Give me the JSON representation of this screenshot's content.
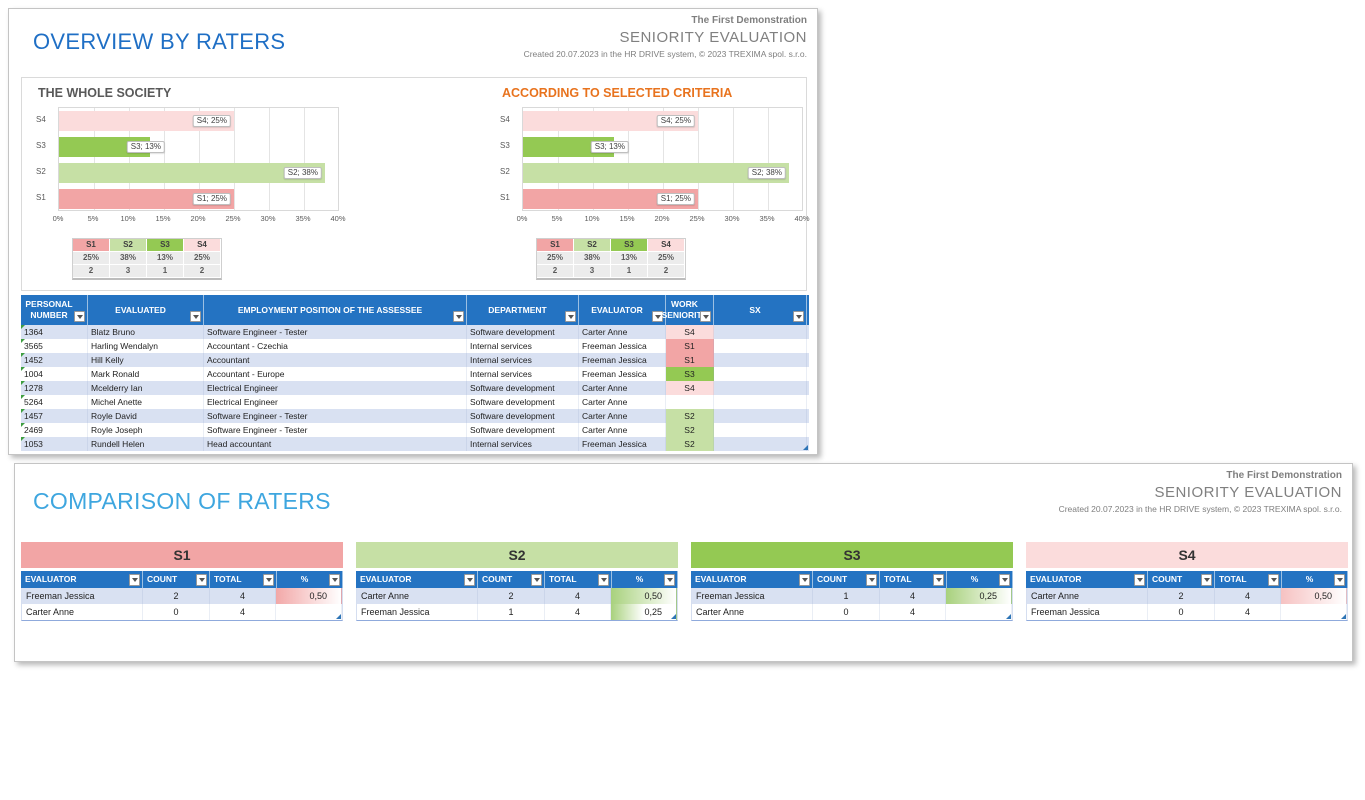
{
  "overview": {
    "title": "OVERVIEW BY RATERS",
    "brand": "The First Demonstration",
    "subtitle": "SENIORITY EVALUATION",
    "created": "Created 20.07.2023 in the HR DRIVE system, © 2023 TREXIMA spol. s.r.o."
  },
  "comparison": {
    "title": "COMPARISON OF RATERS",
    "brand": "The First Demonstration",
    "subtitle": "SENIORITY EVALUATION",
    "created": "Created 20.07.2023 in the HR DRIVE system, © 2023 TREXIMA spol. s.r.o."
  },
  "colors": {
    "s1": "#F2A5A5",
    "s2": "#C6E0A5",
    "s3": "#94C953",
    "s4": "#FBDCDC",
    "header_blue": "#2473C2",
    "overview_title_blue": "#1F6FC5",
    "comparison_title_blue": "#3EA6DF",
    "chart2_title_orange": "#E8731E",
    "chart1_title_gray": "#595959",
    "row_alt_blue": "#D9E1F2"
  },
  "chart_data": [
    {
      "type": "bar",
      "orientation": "horizontal",
      "title": "THE WHOLE SOCIETY",
      "title_color": "#595959",
      "categories": [
        "S4",
        "S3",
        "S2",
        "S1"
      ],
      "values": [
        25,
        13,
        38,
        25
      ],
      "labels": [
        "S4; 25%",
        "S3; 13%",
        "S2; 38%",
        "S1; 25%"
      ],
      "bar_colors": [
        "s4",
        "s3",
        "s2",
        "s1"
      ],
      "xlim": [
        0,
        40
      ],
      "xticks": [
        "0%",
        "5%",
        "10%",
        "15%",
        "20%",
        "25%",
        "30%",
        "35%",
        "40%"
      ],
      "grid": true,
      "legend": "none"
    },
    {
      "type": "bar",
      "orientation": "horizontal",
      "title": "ACCORDING TO SELECTED CRITERIA",
      "title_color": "#E8731E",
      "categories": [
        "S4",
        "S3",
        "S2",
        "S1"
      ],
      "values": [
        25,
        13,
        38,
        25
      ],
      "labels": [
        "S4; 25%",
        "S3; 13%",
        "S2; 38%",
        "S1; 25%"
      ],
      "bar_colors": [
        "s4",
        "s3",
        "s2",
        "s1"
      ],
      "xlim": [
        0,
        40
      ],
      "xticks": [
        "0%",
        "5%",
        "10%",
        "15%",
        "20%",
        "25%",
        "30%",
        "35%",
        "40%"
      ],
      "grid": true,
      "legend": "none"
    }
  ],
  "summary_tables": [
    {
      "headers": [
        "S1",
        "S2",
        "S3",
        "S4"
      ],
      "pct": [
        "25%",
        "38%",
        "13%",
        "25%"
      ],
      "count": [
        "2",
        "3",
        "1",
        "2"
      ]
    },
    {
      "headers": [
        "S1",
        "S2",
        "S3",
        "S4"
      ],
      "pct": [
        "25%",
        "38%",
        "13%",
        "25%"
      ],
      "count": [
        "2",
        "3",
        "1",
        "2"
      ]
    }
  ],
  "main_table": {
    "columns": [
      "PERSONAL NUMBER",
      "EVALUATED",
      "EMPLOYMENT POSITION OF THE ASSESSEE",
      "DEPARTMENT",
      "EVALUATOR",
      "WORK SENIORITY",
      "SX"
    ],
    "rows": [
      {
        "personal_number": "1364",
        "evaluated": "Blatz Bruno",
        "position": "Software Engineer - Tester",
        "department": "Software development",
        "evaluator": "Carter Anne",
        "seniority": "S4",
        "sx": ""
      },
      {
        "personal_number": "3565",
        "evaluated": "Harling Wendalyn",
        "position": "Accountant - Czechia",
        "department": "Internal services",
        "evaluator": "Freeman Jessica",
        "seniority": "S1",
        "sx": ""
      },
      {
        "personal_number": "1452",
        "evaluated": "Hill Kelly",
        "position": "Accountant",
        "department": "Internal services",
        "evaluator": "Freeman Jessica",
        "seniority": "S1",
        "sx": ""
      },
      {
        "personal_number": "1004",
        "evaluated": "Mark Ronald",
        "position": "Accountant - Europe",
        "department": "Internal services",
        "evaluator": "Freeman Jessica",
        "seniority": "S3",
        "sx": ""
      },
      {
        "personal_number": "1278",
        "evaluated": "Mcelderry Ian",
        "position": "Electrical Engineer",
        "department": "Software development",
        "evaluator": "Carter Anne",
        "seniority": "S4",
        "sx": ""
      },
      {
        "personal_number": "5264",
        "evaluated": "Michel Anette",
        "position": "Electrical Engineer",
        "department": "Software development",
        "evaluator": "Carter Anne",
        "seniority": "",
        "sx": ""
      },
      {
        "personal_number": "1457",
        "evaluated": "Royle David",
        "position": "Software Engineer - Tester",
        "department": "Software development",
        "evaluator": "Carter Anne",
        "seniority": "S2",
        "sx": ""
      },
      {
        "personal_number": "2469",
        "evaluated": "Royle Joseph",
        "position": "Software Engineer - Tester",
        "department": "Software development",
        "evaluator": "Carter Anne",
        "seniority": "S2",
        "sx": ""
      },
      {
        "personal_number": "1053",
        "evaluated": "Rundell Helen",
        "position": "Head accountant",
        "department": "Internal services",
        "evaluator": "Freeman Jessica",
        "seniority": "S2",
        "sx": ""
      }
    ]
  },
  "comparison_tables": [
    {
      "name": "S1",
      "color_key": "s1",
      "bar_color": "#F2A8A8",
      "columns": [
        "EVALUATOR",
        "COUNT",
        "TOTAL",
        "%"
      ],
      "rows": [
        {
          "evaluator": "Freeman Jessica",
          "count": "2",
          "total": "4",
          "pct": "0,50",
          "bar": 1
        },
        {
          "evaluator": "Carter Anne",
          "count": "0",
          "total": "4",
          "pct": "",
          "bar": 0
        }
      ]
    },
    {
      "name": "S2",
      "color_key": "s2",
      "bar_color": "#A8D17D",
      "columns": [
        "EVALUATOR",
        "COUNT",
        "TOTAL",
        "%"
      ],
      "rows": [
        {
          "evaluator": "Carter Anne",
          "count": "2",
          "total": "4",
          "pct": "0,50",
          "bar": 1
        },
        {
          "evaluator": "Freeman Jessica",
          "count": "1",
          "total": "4",
          "pct": "0,25",
          "bar": 0.5
        }
      ]
    },
    {
      "name": "S3",
      "color_key": "s3",
      "bar_color": "#A8D17D",
      "columns": [
        "EVALUATOR",
        "COUNT",
        "TOTAL",
        "%"
      ],
      "rows": [
        {
          "evaluator": "Freeman Jessica",
          "count": "1",
          "total": "4",
          "pct": "0,25",
          "bar": 1
        },
        {
          "evaluator": "Carter Anne",
          "count": "0",
          "total": "4",
          "pct": "",
          "bar": 0
        }
      ]
    },
    {
      "name": "S4",
      "color_key": "s4",
      "bar_color": "#F6C2C2",
      "columns": [
        "EVALUATOR",
        "COUNT",
        "TOTAL",
        "%"
      ],
      "rows": [
        {
          "evaluator": "Carter Anne",
          "count": "2",
          "total": "4",
          "pct": "0,50",
          "bar": 1
        },
        {
          "evaluator": "Freeman Jessica",
          "count": "0",
          "total": "4",
          "pct": "",
          "bar": 0
        }
      ]
    }
  ]
}
